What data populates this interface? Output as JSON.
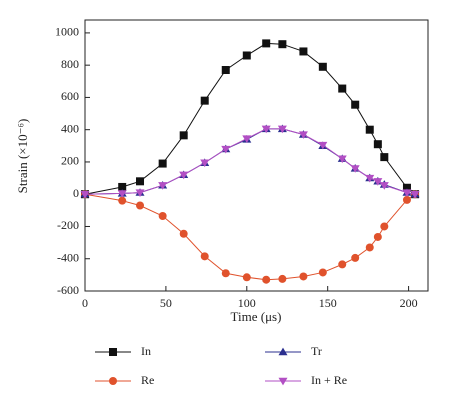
{
  "chart_data": {
    "type": "line",
    "xlabel": "Time (μs)",
    "ylabel": "Strain (×10⁻⁶)",
    "x": [
      0,
      23,
      34,
      48,
      61,
      74,
      87,
      100,
      112,
      122,
      135,
      147,
      159,
      167,
      176,
      181,
      185,
      199,
      204
    ],
    "series": [
      {
        "name": "In",
        "color": "#111111",
        "marker": "square",
        "values": [
          0,
          45,
          80,
          190,
          365,
          580,
          770,
          860,
          935,
          930,
          885,
          790,
          655,
          555,
          400,
          310,
          230,
          40,
          0
        ]
      },
      {
        "name": "Re",
        "color": "#e0522c",
        "marker": "circle",
        "values": [
          0,
          -40,
          -70,
          -135,
          -245,
          -385,
          -490,
          -515,
          -530,
          -525,
          -510,
          -485,
          -435,
          -395,
          -330,
          -265,
          -200,
          -35,
          0
        ]
      },
      {
        "name": "Tr",
        "color": "#2b2f8f",
        "marker": "triangle-up",
        "values": [
          0,
          5,
          10,
          55,
          120,
          195,
          280,
          340,
          405,
          405,
          370,
          300,
          220,
          160,
          100,
          80,
          60,
          10,
          0
        ]
      },
      {
        "name": "In + Re",
        "color": "#b24fc4",
        "marker": "triangle-down",
        "values": [
          0,
          5,
          10,
          55,
          120,
          195,
          280,
          345,
          405,
          405,
          370,
          305,
          220,
          160,
          100,
          80,
          55,
          10,
          0
        ]
      }
    ],
    "xlim": [
      0,
      212
    ],
    "xticks": [
      0,
      50,
      100,
      150,
      200
    ],
    "ylim": [
      -600,
      1080
    ],
    "yticks": [
      -600,
      -400,
      -200,
      0,
      200,
      400,
      600,
      800,
      1000
    ],
    "grid": false
  }
}
